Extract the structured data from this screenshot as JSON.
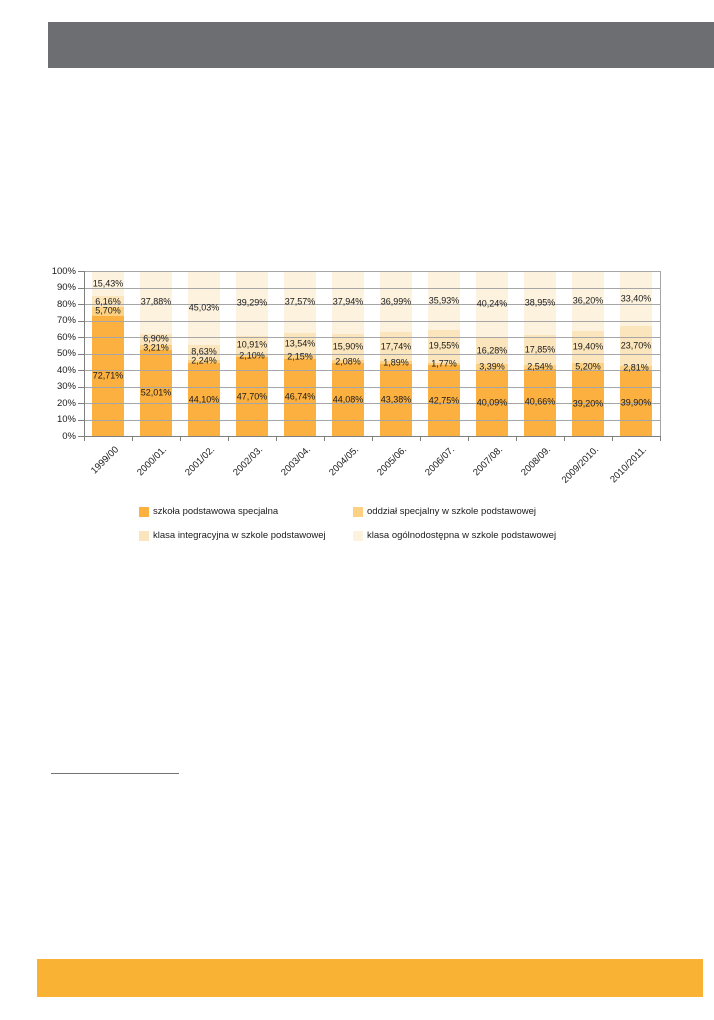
{
  "page": {
    "header_color": "#6D6E71",
    "footer_color": "#F9B233",
    "background_color": "#FFFFFF"
  },
  "chart_data": {
    "type": "bar",
    "variant": "stacked-100-percent-column",
    "title": "",
    "xlabel": "",
    "ylabel": "",
    "ylim": [
      0,
      100
    ],
    "grid": true,
    "legend_position": "bottom",
    "value_label_format": "##,##% (comma decimal, 2 decimals)",
    "y_ticks": [
      "0%",
      "10%",
      "20%",
      "30%",
      "40%",
      "50%",
      "60%",
      "70%",
      "80%",
      "90%",
      "100%"
    ],
    "categories": [
      "1999/00",
      "2000/01.",
      "2001/02.",
      "2002/03.",
      "2003/04.",
      "2004/05.",
      "2005/06.",
      "2006/07.",
      "2007/08.",
      "2008/09.",
      "2009/2010.",
      "2010/2011."
    ],
    "series": [
      {
        "name": "szkoła podstawowa specjalna",
        "color": "#FBB040",
        "values": [
          72.71,
          52.01,
          44.1,
          47.7,
          46.74,
          44.08,
          43.38,
          42.75,
          40.09,
          40.66,
          39.2,
          39.9
        ]
      },
      {
        "name": "oddział specjalny w szkole podstawowej",
        "color": "#FCD184",
        "values": [
          5.7,
          3.21,
          2.24,
          2.1,
          2.15,
          2.08,
          1.89,
          1.77,
          3.39,
          2.54,
          5.2,
          2.81
        ]
      },
      {
        "name": "klasa integracyjna w szkole podstawowej",
        "color": "#FBE5BC",
        "values": [
          6.16,
          6.9,
          8.63,
          10.91,
          13.54,
          15.9,
          17.74,
          19.55,
          16.28,
          17.85,
          19.4,
          23.7
        ]
      },
      {
        "name": "klasa ogólnodostępna w szkole podstawowej",
        "color": "#FDF2DE",
        "values": [
          15.43,
          37.88,
          45.03,
          39.29,
          37.57,
          37.94,
          36.99,
          35.93,
          40.24,
          38.95,
          36.2,
          33.4
        ]
      }
    ],
    "colors": {
      "gridline": "#A6A6A6",
      "axis": "#7F7F7F",
      "label_text": "#1A1A1A"
    }
  }
}
